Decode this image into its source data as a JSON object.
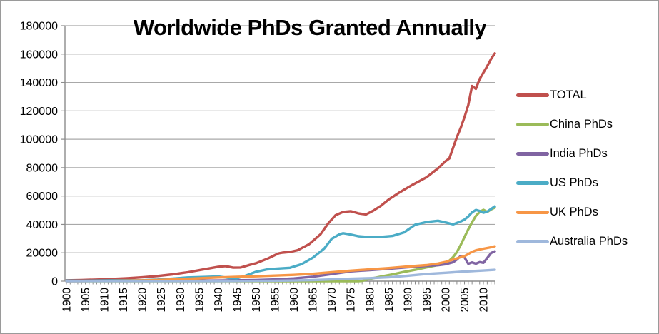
{
  "chart_data": {
    "type": "line",
    "title": "Worldwide PhDs Granted Annually",
    "background_color": "#FFFFFF",
    "axis_color": "#8C8C8C",
    "gridline_color": "#A8A8A8",
    "grid": true,
    "legend_position": "right",
    "x_axis": {
      "label": "",
      "range": [
        1900,
        2013
      ],
      "tick_interval_years": 1,
      "tick_labels": [
        "1900",
        "1905",
        "1910",
        "1915",
        "1920",
        "1925",
        "1930",
        "1935",
        "1940",
        "1945",
        "1950",
        "1955",
        "1960",
        "1965",
        "1970",
        "1975",
        "1980",
        "1985",
        "1990",
        "1995",
        "2000",
        "2005",
        "2010"
      ]
    },
    "y_axis": {
      "label": "",
      "range": [
        0,
        180000
      ],
      "tick_step": 20000,
      "tick_labels": [
        "0",
        "20000",
        "40000",
        "60000",
        "80000",
        "100000",
        "120000",
        "140000",
        "160000",
        "180000"
      ]
    },
    "series": [
      {
        "name": "TOTAL",
        "color": "#C0504D",
        "points": [
          [
            1900,
            600
          ],
          [
            1904,
            800
          ],
          [
            1908,
            1100
          ],
          [
            1912,
            1500
          ],
          [
            1916,
            2000
          ],
          [
            1920,
            2700
          ],
          [
            1924,
            3600
          ],
          [
            1928,
            4800
          ],
          [
            1932,
            6300
          ],
          [
            1936,
            8200
          ],
          [
            1940,
            10100
          ],
          [
            1942,
            10600
          ],
          [
            1944,
            9500
          ],
          [
            1946,
            9600
          ],
          [
            1948,
            11200
          ],
          [
            1950,
            12600
          ],
          [
            1953,
            15800
          ],
          [
            1956,
            19600
          ],
          [
            1957,
            20100
          ],
          [
            1959,
            20600
          ],
          [
            1961,
            21800
          ],
          [
            1964,
            26000
          ],
          [
            1967,
            33000
          ],
          [
            1969,
            40500
          ],
          [
            1971,
            46500
          ],
          [
            1973,
            48800
          ],
          [
            1975,
            49300
          ],
          [
            1977,
            47800
          ],
          [
            1979,
            47000
          ],
          [
            1981,
            49800
          ],
          [
            1983,
            53200
          ],
          [
            1985,
            57500
          ],
          [
            1988,
            62800
          ],
          [
            1991,
            67500
          ],
          [
            1995,
            73200
          ],
          [
            1998,
            79500
          ],
          [
            2000,
            84500
          ],
          [
            2001,
            86500
          ],
          [
            2002,
            94000
          ],
          [
            2003,
            101500
          ],
          [
            2004,
            108000
          ],
          [
            2005,
            115500
          ],
          [
            2006,
            124000
          ],
          [
            2007,
            137500
          ],
          [
            2008,
            135500
          ],
          [
            2009,
            142500
          ],
          [
            2010,
            147000
          ],
          [
            2011,
            151500
          ],
          [
            2012,
            156500
          ],
          [
            2013,
            160500
          ]
        ]
      },
      {
        "name": "China PhDs",
        "color": "#9BBB59",
        "points": [
          [
            1900,
            0
          ],
          [
            1955,
            0
          ],
          [
            1977,
            0
          ],
          [
            1978,
            200
          ],
          [
            1980,
            1600
          ],
          [
            1983,
            3200
          ],
          [
            1986,
            4800
          ],
          [
            1989,
            6500
          ],
          [
            1992,
            8000
          ],
          [
            1995,
            9700
          ],
          [
            1998,
            11300
          ],
          [
            2000,
            12800
          ],
          [
            2001,
            14500
          ],
          [
            2002,
            17000
          ],
          [
            2003,
            20500
          ],
          [
            2004,
            25500
          ],
          [
            2005,
            31000
          ],
          [
            2006,
            36500
          ],
          [
            2007,
            41500
          ],
          [
            2008,
            46000
          ],
          [
            2009,
            48800
          ],
          [
            2010,
            50300
          ],
          [
            2011,
            48800
          ],
          [
            2012,
            50600
          ],
          [
            2013,
            51800
          ]
        ]
      },
      {
        "name": "India PhDs",
        "color": "#8064A2",
        "points": [
          [
            1900,
            50
          ],
          [
            1920,
            150
          ],
          [
            1930,
            250
          ],
          [
            1940,
            450
          ],
          [
            1950,
            800
          ],
          [
            1955,
            1200
          ],
          [
            1960,
            1900
          ],
          [
            1965,
            3100
          ],
          [
            1970,
            5000
          ],
          [
            1975,
            6900
          ],
          [
            1980,
            7800
          ],
          [
            1985,
            8700
          ],
          [
            1990,
            9800
          ],
          [
            1995,
            10700
          ],
          [
            1998,
            11200
          ],
          [
            2000,
            11900
          ],
          [
            2002,
            13300
          ],
          [
            2003,
            15300
          ],
          [
            2004,
            17800
          ],
          [
            2005,
            16800
          ],
          [
            2006,
            12200
          ],
          [
            2007,
            13200
          ],
          [
            2008,
            12300
          ],
          [
            2009,
            13400
          ],
          [
            2010,
            12900
          ],
          [
            2011,
            16300
          ],
          [
            2012,
            19800
          ],
          [
            2013,
            21000
          ]
        ]
      },
      {
        "name": "US PhDs",
        "color": "#4BACC6",
        "points": [
          [
            1900,
            380
          ],
          [
            1904,
            320
          ],
          [
            1908,
            400
          ],
          [
            1912,
            500
          ],
          [
            1916,
            600
          ],
          [
            1920,
            650
          ],
          [
            1924,
            1100
          ],
          [
            1928,
            1800
          ],
          [
            1932,
            2600
          ],
          [
            1936,
            2900
          ],
          [
            1940,
            3300
          ],
          [
            1943,
            2200
          ],
          [
            1945,
            2000
          ],
          [
            1947,
            3600
          ],
          [
            1950,
            6600
          ],
          [
            1953,
            8300
          ],
          [
            1956,
            8900
          ],
          [
            1959,
            9400
          ],
          [
            1962,
            11900
          ],
          [
            1965,
            16500
          ],
          [
            1968,
            23000
          ],
          [
            1970,
            29900
          ],
          [
            1972,
            33000
          ],
          [
            1973,
            33800
          ],
          [
            1975,
            32900
          ],
          [
            1977,
            31700
          ],
          [
            1980,
            31000
          ],
          [
            1983,
            31200
          ],
          [
            1986,
            31900
          ],
          [
            1989,
            34300
          ],
          [
            1992,
            39800
          ],
          [
            1995,
            41700
          ],
          [
            1998,
            42600
          ],
          [
            2000,
            41400
          ],
          [
            2002,
            40000
          ],
          [
            2004,
            42100
          ],
          [
            2005,
            43400
          ],
          [
            2006,
            45600
          ],
          [
            2007,
            48500
          ],
          [
            2008,
            50200
          ],
          [
            2009,
            49500
          ],
          [
            2010,
            48200
          ],
          [
            2011,
            49000
          ],
          [
            2012,
            50900
          ],
          [
            2013,
            52700
          ]
        ]
      },
      {
        "name": "UK PhDs",
        "color": "#F79646",
        "points": [
          [
            1900,
            50
          ],
          [
            1910,
            120
          ],
          [
            1920,
            500
          ],
          [
            1925,
            900
          ],
          [
            1930,
            1400
          ],
          [
            1935,
            2000
          ],
          [
            1940,
            2600
          ],
          [
            1945,
            3000
          ],
          [
            1950,
            3400
          ],
          [
            1955,
            3900
          ],
          [
            1960,
            4400
          ],
          [
            1965,
            5200
          ],
          [
            1970,
            6300
          ],
          [
            1975,
            7400
          ],
          [
            1980,
            8300
          ],
          [
            1985,
            9200
          ],
          [
            1990,
            10300
          ],
          [
            1995,
            11300
          ],
          [
            1998,
            12400
          ],
          [
            2000,
            13600
          ],
          [
            2002,
            15200
          ],
          [
            2004,
            16900
          ],
          [
            2005,
            17600
          ],
          [
            2006,
            19100
          ],
          [
            2007,
            20700
          ],
          [
            2008,
            21700
          ],
          [
            2009,
            22300
          ],
          [
            2010,
            22900
          ],
          [
            2011,
            23400
          ],
          [
            2012,
            23900
          ],
          [
            2013,
            24600
          ]
        ]
      },
      {
        "name": "Australia PhDs",
        "color": "#9FB8DC",
        "points": [
          [
            1900,
            0
          ],
          [
            1940,
            50
          ],
          [
            1950,
            200
          ],
          [
            1955,
            300
          ],
          [
            1960,
            450
          ],
          [
            1965,
            750
          ],
          [
            1970,
            1200
          ],
          [
            1975,
            1700
          ],
          [
            1980,
            2100
          ],
          [
            1985,
            2700
          ],
          [
            1990,
            3800
          ],
          [
            1995,
            5100
          ],
          [
            2000,
            5900
          ],
          [
            2005,
            6800
          ],
          [
            2010,
            7500
          ],
          [
            2013,
            8000
          ]
        ]
      }
    ]
  }
}
